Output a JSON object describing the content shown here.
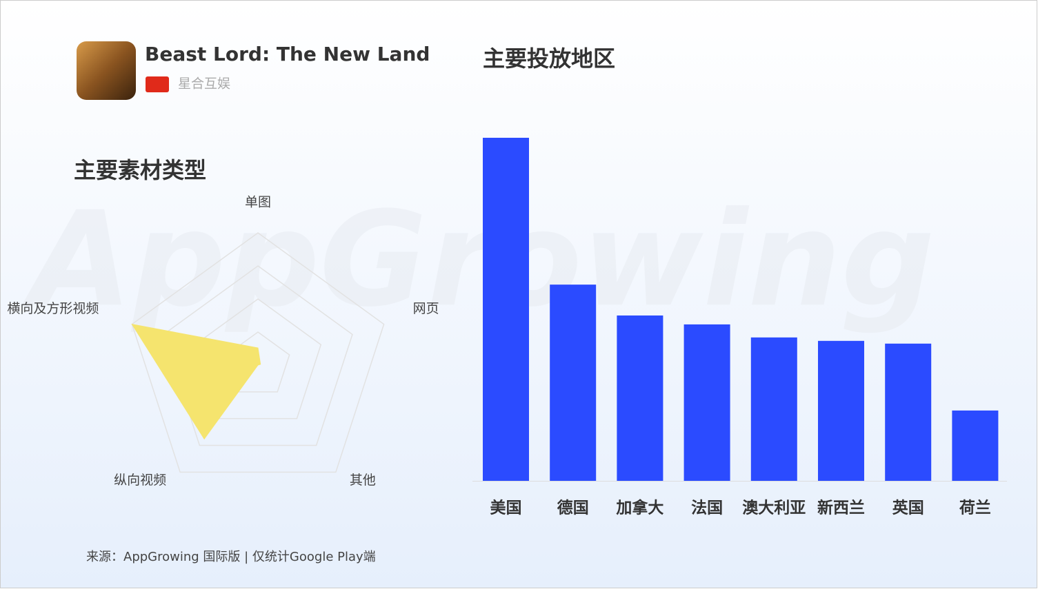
{
  "header": {
    "app_name": "Beast Lord: The New Land",
    "publisher": "星合互娱"
  },
  "watermark": "AppGrowing",
  "chart_data": [
    {
      "type": "radar",
      "title": "主要素材类型",
      "categories": [
        "单图",
        "网页",
        "其他",
        "纵向视频",
        "横向及方形视频"
      ],
      "values": [
        13,
        2,
        0,
        69,
        100
      ],
      "color": "#f5e46e",
      "rlim": [
        0,
        100
      ],
      "rticks": [
        25,
        50,
        75,
        100
      ]
    },
    {
      "type": "bar",
      "title": "主要投放地区",
      "categories": [
        "美国",
        "德国",
        "加拿大",
        "法国",
        "澳大利亚",
        "新西兰",
        "英国",
        "荷兰"
      ],
      "values": [
        100,
        57.2,
        48.2,
        45.6,
        41.8,
        40.8,
        40.0,
        20.5
      ],
      "color": "#2b4bff",
      "ylim": [
        0,
        100
      ]
    }
  ],
  "source": "来源：AppGrowing 国际版 | 仅统计Google Play端"
}
